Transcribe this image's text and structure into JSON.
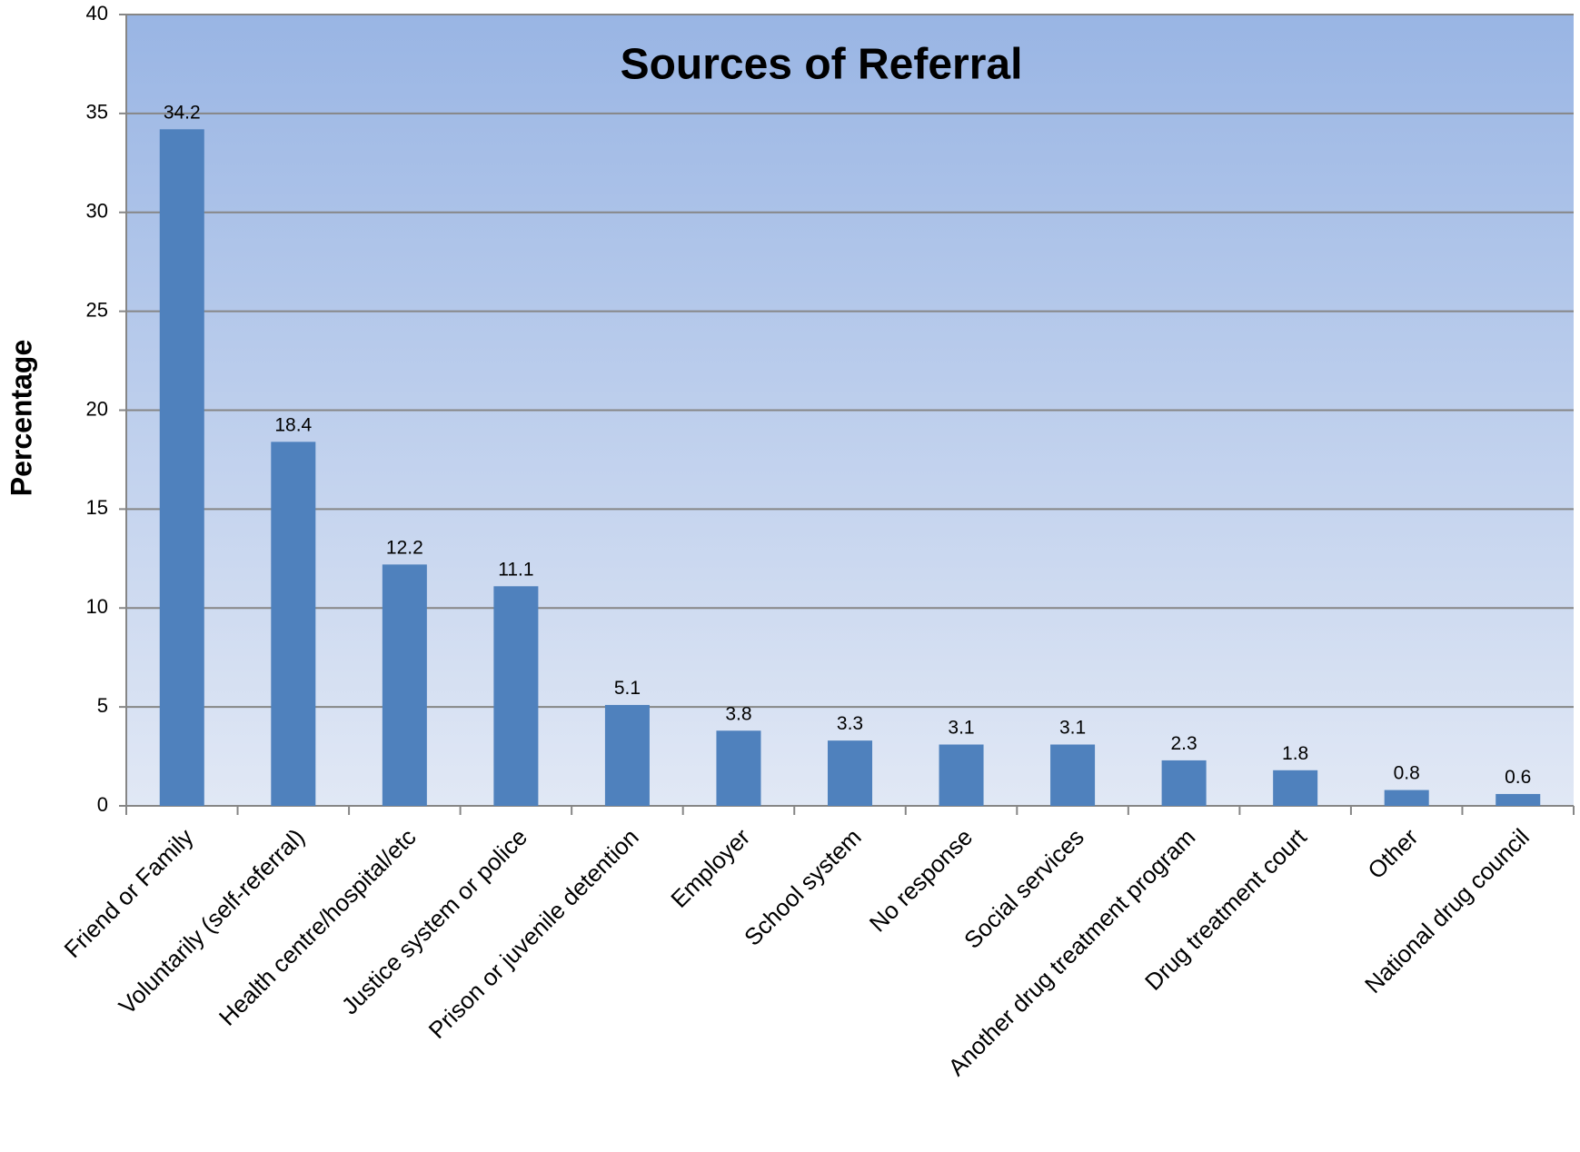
{
  "chart_data": {
    "type": "bar",
    "title": "Sources of Referral",
    "y_label": "Percentage",
    "categories": [
      "Friend or Family",
      "Voluntarily (self-referral)",
      "Health centre/hospital/etc",
      "Justice system or police",
      "Prison or juvenile detention",
      "Employer",
      "School system",
      "No response",
      "Social services",
      "Another drug treatment program",
      "Drug treatment court",
      "Other",
      "National drug council"
    ],
    "values": [
      34.2,
      18.4,
      12.2,
      11.1,
      5.1,
      3.8,
      3.3,
      3.1,
      3.1,
      2.3,
      1.8,
      0.8,
      0.6
    ],
    "color": "#4f81bd",
    "ylim": [
      0,
      40
    ],
    "yticks": [
      0,
      5,
      10,
      15,
      20,
      25,
      30,
      35,
      40
    ],
    "grid": true
  }
}
